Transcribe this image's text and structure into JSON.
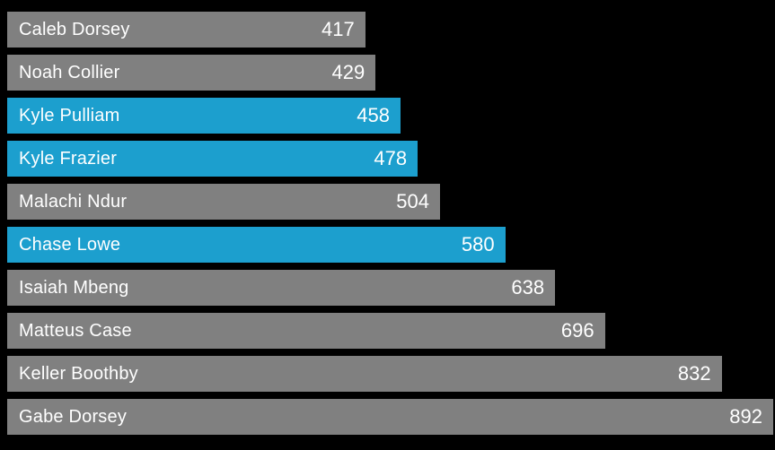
{
  "chart_data": {
    "type": "bar",
    "orientation": "horizontal",
    "title": "",
    "xlabel": "",
    "ylabel": "",
    "categories": [
      "Caleb Dorsey",
      "Noah Collier",
      "Kyle Pulliam",
      "Kyle Frazier",
      "Malachi Ndur",
      "Chase Lowe",
      "Isaiah Mbeng",
      "Matteus Case",
      "Keller Boothby",
      "Gabe Dorsey"
    ],
    "values": [
      417,
      429,
      458,
      478,
      504,
      580,
      638,
      696,
      832,
      892
    ],
    "highlighted": [
      false,
      false,
      true,
      true,
      false,
      true,
      false,
      false,
      false,
      false
    ],
    "xlim": [
      0,
      892
    ],
    "value_labels": "inside-right",
    "grid": "off",
    "legend": "none",
    "sort_order": "ascending"
  },
  "colors": {
    "background": "#000000",
    "bar_default": "#808080",
    "bar_highlight": "#1c9fce",
    "label_text": "#ffffff"
  }
}
